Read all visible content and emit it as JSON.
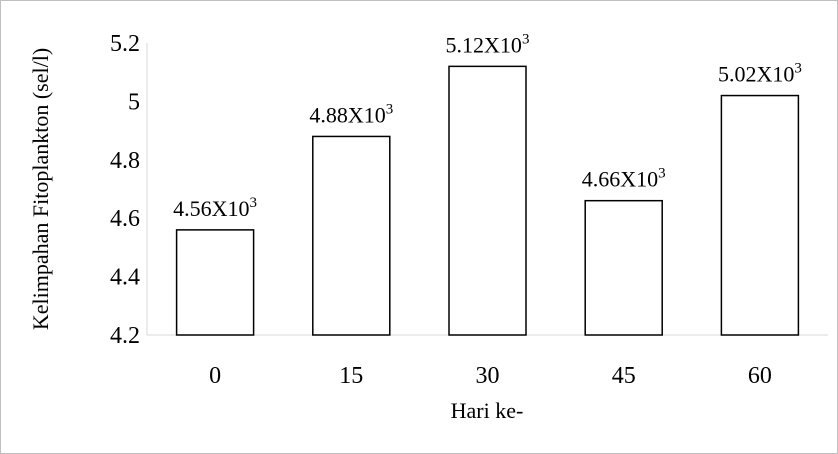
{
  "chart_data": {
    "type": "bar",
    "title": "",
    "xlabel": "Hari ke-",
    "ylabel": "Kelimpahan Fitoplankton (sel/l)",
    "categories": [
      "0",
      "15",
      "30",
      "45",
      "60"
    ],
    "values": [
      4.56,
      4.88,
      5.12,
      4.66,
      5.02
    ],
    "data_labels": [
      {
        "base": "4.56X10",
        "exp": "3"
      },
      {
        "base": "4.88X10",
        "exp": "3"
      },
      {
        "base": "5.12X10",
        "exp": "3"
      },
      {
        "base": "4.66X10",
        "exp": "3"
      },
      {
        "base": "5.02X10",
        "exp": "3"
      }
    ],
    "ylim": [
      4.2,
      5.2
    ],
    "yticks": [
      "4.2",
      "4.4",
      "4.6",
      "4.8",
      "5",
      "5.2"
    ],
    "ytick_values": [
      4.2,
      4.4,
      4.6,
      4.8,
      5.0,
      5.2
    ],
    "grid": false,
    "legend": "none",
    "bar_fill": "#ffffff",
    "bar_stroke": "#000000"
  }
}
